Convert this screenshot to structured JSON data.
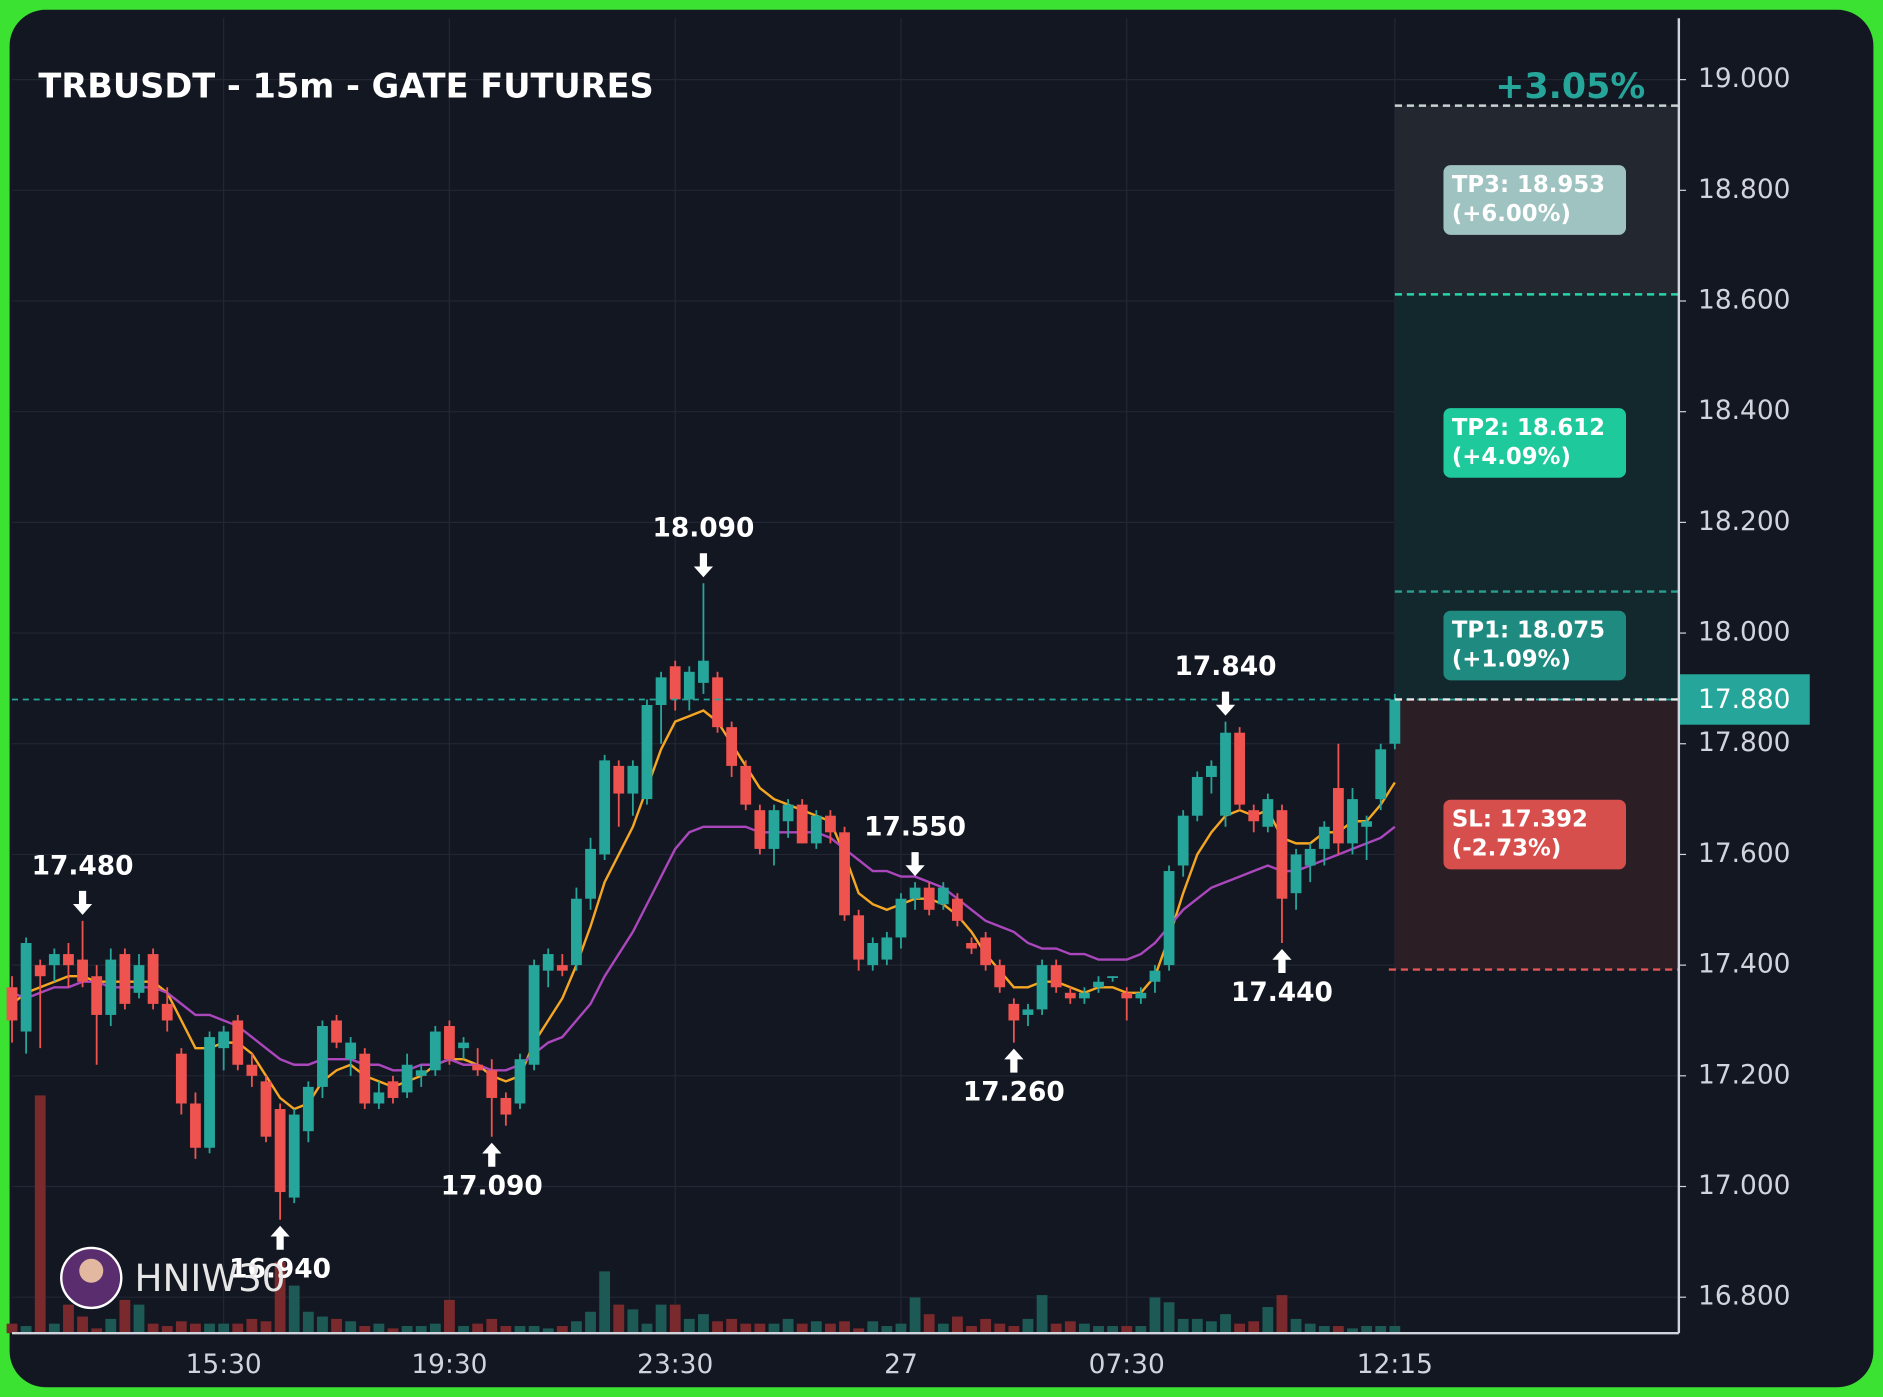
{
  "chart_data": {
    "type": "candlestick",
    "title": "TRBUSDT - 15m - GATE FUTURES",
    "categories": [
      null,
      null,
      null,
      null,
      null,
      null,
      null,
      null,
      null,
      null,
      null,
      null,
      null,
      null,
      null,
      "15:30",
      null,
      null,
      null,
      null,
      null,
      null,
      null,
      null,
      null,
      null,
      null,
      null,
      null,
      null,
      null,
      "19:30",
      null,
      null,
      null,
      null,
      null,
      null,
      null,
      null,
      null,
      null,
      null,
      null,
      null,
      null,
      null,
      "23:30",
      null,
      null,
      null,
      null,
      null,
      null,
      null,
      null,
      null,
      null,
      null,
      null,
      null,
      null,
      null,
      "27",
      null,
      null,
      null,
      null,
      null,
      null,
      null,
      null,
      null,
      null,
      null,
      null,
      null,
      null,
      null,
      "07:30",
      null,
      null,
      null,
      null,
      null,
      null,
      null,
      null,
      null,
      null,
      null,
      null,
      null,
      null,
      null,
      null,
      null,
      null,
      "12:15"
    ],
    "candles": [
      [
        17.36,
        17.38,
        17.26,
        17.3
      ],
      [
        17.28,
        17.45,
        17.24,
        17.44
      ],
      [
        17.4,
        17.41,
        17.25,
        17.38
      ],
      [
        17.4,
        17.43,
        17.37,
        17.42
      ],
      [
        17.42,
        17.44,
        17.36,
        17.4
      ],
      [
        17.41,
        17.48,
        17.36,
        17.37
      ],
      [
        17.38,
        17.4,
        17.22,
        17.31
      ],
      [
        17.31,
        17.43,
        17.29,
        17.41
      ],
      [
        17.42,
        17.43,
        17.32,
        17.33
      ],
      [
        17.35,
        17.42,
        17.34,
        17.4
      ],
      [
        17.42,
        17.43,
        17.32,
        17.33
      ],
      [
        17.33,
        17.36,
        17.28,
        17.3
      ],
      [
        17.24,
        17.25,
        17.13,
        17.15
      ],
      [
        17.15,
        17.17,
        17.05,
        17.07
      ],
      [
        17.07,
        17.28,
        17.06,
        17.27
      ],
      [
        17.25,
        17.29,
        17.21,
        17.28
      ],
      [
        17.3,
        17.31,
        17.21,
        17.22
      ],
      [
        17.22,
        17.24,
        17.18,
        17.2
      ],
      [
        17.19,
        17.2,
        17.08,
        17.09
      ],
      [
        17.14,
        17.15,
        16.94,
        16.99
      ],
      [
        16.98,
        17.14,
        16.97,
        17.13
      ],
      [
        17.1,
        17.19,
        17.08,
        17.18
      ],
      [
        17.18,
        17.3,
        17.16,
        17.29
      ],
      [
        17.3,
        17.31,
        17.25,
        17.26
      ],
      [
        17.23,
        17.27,
        17.2,
        17.26
      ],
      [
        17.24,
        17.25,
        17.14,
        17.15
      ],
      [
        17.15,
        17.19,
        17.14,
        17.17
      ],
      [
        17.19,
        17.2,
        17.15,
        17.16
      ],
      [
        17.17,
        17.24,
        17.16,
        17.22
      ],
      [
        17.2,
        17.22,
        17.18,
        17.21
      ],
      [
        17.21,
        17.29,
        17.2,
        17.28
      ],
      [
        17.29,
        17.3,
        17.22,
        17.23
      ],
      [
        17.25,
        17.27,
        17.23,
        17.26
      ],
      [
        17.22,
        17.25,
        17.2,
        17.21
      ],
      [
        17.21,
        17.23,
        17.09,
        17.16
      ],
      [
        17.16,
        17.17,
        17.11,
        17.13
      ],
      [
        17.15,
        17.24,
        17.14,
        17.23
      ],
      [
        17.22,
        17.41,
        17.21,
        17.4
      ],
      [
        17.39,
        17.43,
        17.36,
        17.42
      ],
      [
        17.4,
        17.42,
        17.38,
        17.39
      ],
      [
        17.4,
        17.54,
        17.39,
        17.52
      ],
      [
        17.52,
        17.63,
        17.5,
        17.61
      ],
      [
        17.6,
        17.78,
        17.59,
        17.77
      ],
      [
        17.76,
        17.77,
        17.65,
        17.71
      ],
      [
        17.71,
        17.77,
        17.67,
        17.76
      ],
      [
        17.7,
        17.88,
        17.69,
        17.87
      ],
      [
        17.87,
        17.93,
        17.8,
        17.92
      ],
      [
        17.94,
        17.95,
        17.86,
        17.88
      ],
      [
        17.88,
        17.94,
        17.86,
        17.93
      ],
      [
        17.91,
        18.09,
        17.89,
        17.95
      ],
      [
        17.92,
        17.93,
        17.82,
        17.83
      ],
      [
        17.83,
        17.84,
        17.74,
        17.76
      ],
      [
        17.76,
        17.77,
        17.68,
        17.69
      ],
      [
        17.68,
        17.69,
        17.6,
        17.61
      ],
      [
        17.61,
        17.69,
        17.58,
        17.68
      ],
      [
        17.66,
        17.7,
        17.63,
        17.69
      ],
      [
        17.69,
        17.7,
        17.62,
        17.62
      ],
      [
        17.62,
        17.68,
        17.61,
        17.67
      ],
      [
        17.67,
        17.68,
        17.62,
        17.64
      ],
      [
        17.64,
        17.65,
        17.48,
        17.49
      ],
      [
        17.49,
        17.5,
        17.39,
        17.41
      ],
      [
        17.4,
        17.45,
        17.39,
        17.44
      ],
      [
        17.41,
        17.46,
        17.4,
        17.45
      ],
      [
        17.45,
        17.53,
        17.43,
        17.52
      ],
      [
        17.52,
        17.55,
        17.5,
        17.54
      ],
      [
        17.54,
        17.55,
        17.49,
        17.5
      ],
      [
        17.51,
        17.55,
        17.5,
        17.54
      ],
      [
        17.52,
        17.53,
        17.47,
        17.48
      ],
      [
        17.44,
        17.45,
        17.42,
        17.43
      ],
      [
        17.45,
        17.46,
        17.39,
        17.4
      ],
      [
        17.4,
        17.41,
        17.35,
        17.36
      ],
      [
        17.33,
        17.34,
        17.26,
        17.3
      ],
      [
        17.31,
        17.33,
        17.29,
        17.32
      ],
      [
        17.32,
        17.41,
        17.31,
        17.4
      ],
      [
        17.4,
        17.41,
        17.35,
        17.36
      ],
      [
        17.35,
        17.36,
        17.33,
        17.34
      ],
      [
        17.34,
        17.36,
        17.33,
        17.35
      ],
      [
        17.36,
        17.38,
        17.35,
        17.37
      ],
      [
        17.38,
        17.38,
        17.37,
        17.38
      ],
      [
        17.35,
        17.36,
        17.3,
        17.34
      ],
      [
        17.34,
        17.36,
        17.33,
        17.35
      ],
      [
        17.37,
        17.4,
        17.35,
        17.39
      ],
      [
        17.4,
        17.58,
        17.39,
        17.57
      ],
      [
        17.58,
        17.68,
        17.56,
        17.67
      ],
      [
        17.67,
        17.75,
        17.66,
        17.74
      ],
      [
        17.74,
        17.77,
        17.71,
        17.76
      ],
      [
        17.67,
        17.84,
        17.65,
        17.82
      ],
      [
        17.82,
        17.83,
        17.68,
        17.69
      ],
      [
        17.68,
        17.69,
        17.64,
        17.66
      ],
      [
        17.65,
        17.71,
        17.64,
        17.7
      ],
      [
        17.68,
        17.69,
        17.44,
        17.52
      ],
      [
        17.53,
        17.61,
        17.5,
        17.6
      ],
      [
        17.58,
        17.62,
        17.55,
        17.61
      ],
      [
        17.61,
        17.66,
        17.58,
        17.65
      ],
      [
        17.72,
        17.8,
        17.6,
        17.62
      ],
      [
        17.62,
        17.72,
        17.6,
        17.7
      ],
      [
        17.65,
        17.67,
        17.59,
        17.66
      ],
      [
        17.7,
        17.8,
        17.68,
        17.79
      ],
      [
        17.8,
        17.89,
        17.79,
        17.88
      ]
    ],
    "volume": [
      4,
      3,
      100,
      4,
      12,
      7,
      2,
      6,
      14,
      12,
      4,
      3,
      5,
      4,
      4,
      4,
      4,
      6,
      5,
      30,
      20,
      9,
      7,
      6,
      5,
      3,
      4,
      2,
      3,
      3,
      4,
      14,
      3,
      4,
      6,
      3,
      3,
      3,
      2,
      3,
      5,
      9,
      26,
      12,
      10,
      4,
      12,
      12,
      6,
      8,
      5,
      6,
      4,
      4,
      4,
      6,
      4,
      5,
      4,
      5,
      2,
      5,
      3,
      4,
      15,
      8,
      4,
      7,
      3,
      6,
      4,
      3,
      6,
      16,
      4,
      5,
      4,
      3,
      3,
      3,
      3,
      15,
      13,
      6,
      6,
      5,
      8,
      4,
      5,
      11,
      16,
      6,
      4,
      3,
      3,
      2,
      3,
      3,
      3
    ],
    "ma_fast": {
      "color": "#f5a623",
      "values": [
        17.33,
        17.35,
        17.36,
        17.37,
        17.38,
        17.38,
        17.37,
        17.37,
        17.37,
        17.37,
        17.37,
        17.35,
        17.3,
        17.25,
        17.25,
        17.26,
        17.26,
        17.24,
        17.2,
        17.16,
        17.14,
        17.15,
        17.19,
        17.21,
        17.22,
        17.2,
        17.19,
        17.18,
        17.19,
        17.2,
        17.22,
        17.23,
        17.23,
        17.22,
        17.2,
        17.19,
        17.2,
        17.26,
        17.3,
        17.34,
        17.4,
        17.47,
        17.55,
        17.6,
        17.65,
        17.72,
        17.79,
        17.84,
        17.85,
        17.86,
        17.84,
        17.8,
        17.76,
        17.72,
        17.7,
        17.69,
        17.68,
        17.67,
        17.66,
        17.6,
        17.53,
        17.51,
        17.5,
        17.51,
        17.52,
        17.52,
        17.51,
        17.49,
        17.46,
        17.42,
        17.39,
        17.36,
        17.36,
        17.37,
        17.37,
        17.36,
        17.35,
        17.36,
        17.36,
        17.35,
        17.35,
        17.38,
        17.45,
        17.53,
        17.6,
        17.64,
        17.67,
        17.68,
        17.67,
        17.68,
        17.63,
        17.62,
        17.62,
        17.64,
        17.64,
        17.66,
        17.66,
        17.69,
        17.73
      ]
    },
    "ma_slow": {
      "color": "#ab47bc",
      "values": [
        17.35,
        17.34,
        17.35,
        17.36,
        17.36,
        17.37,
        17.37,
        17.36,
        17.36,
        17.36,
        17.36,
        17.35,
        17.33,
        17.31,
        17.31,
        17.3,
        17.29,
        17.27,
        17.25,
        17.23,
        17.22,
        17.22,
        17.23,
        17.23,
        17.23,
        17.22,
        17.22,
        17.21,
        17.21,
        17.22,
        17.22,
        17.23,
        17.22,
        17.22,
        17.21,
        17.21,
        17.22,
        17.24,
        17.26,
        17.27,
        17.3,
        17.33,
        17.38,
        17.42,
        17.46,
        17.51,
        17.56,
        17.61,
        17.64,
        17.65,
        17.65,
        17.65,
        17.65,
        17.64,
        17.64,
        17.64,
        17.64,
        17.64,
        17.63,
        17.61,
        17.59,
        17.57,
        17.57,
        17.56,
        17.56,
        17.55,
        17.54,
        17.52,
        17.5,
        17.48,
        17.47,
        17.46,
        17.44,
        17.43,
        17.43,
        17.42,
        17.42,
        17.41,
        17.41,
        17.41,
        17.42,
        17.44,
        17.47,
        17.5,
        17.52,
        17.54,
        17.55,
        17.56,
        17.57,
        17.58,
        17.57,
        17.57,
        17.58,
        17.59,
        17.6,
        17.61,
        17.62,
        17.63,
        17.65
      ]
    },
    "up_color": "#26a69a",
    "down_color": "#ef5350",
    "ylim": [
      16.735,
      19.111
    ],
    "yticks": [
      {
        "value": 16.8,
        "label": "16.800"
      },
      {
        "value": 17.0,
        "label": "17.000"
      },
      {
        "value": 17.2,
        "label": "17.200"
      },
      {
        "value": 17.4,
        "label": "17.400"
      },
      {
        "value": 17.6,
        "label": "17.600"
      },
      {
        "value": 17.8,
        "label": "17.800"
      },
      {
        "value": 18.0,
        "label": "18.000"
      },
      {
        "value": 18.2,
        "label": "18.200"
      },
      {
        "value": 18.4,
        "label": "18.400"
      },
      {
        "value": 18.6,
        "label": "18.600"
      },
      {
        "value": 18.8,
        "label": "18.800"
      },
      {
        "value": 19.0,
        "label": "19.000"
      }
    ],
    "grid": true,
    "annotations": [
      {
        "label": "17.480",
        "value": 17.48,
        "x": 5
      },
      {
        "label": "16.940",
        "value": 16.94,
        "x": 19
      },
      {
        "label": "17.090",
        "value": 17.09,
        "x": 34
      },
      {
        "label": "18.090",
        "value": 18.09,
        "x": 49
      },
      {
        "label": "17.550",
        "value": 17.55,
        "x": 64
      },
      {
        "label": "17.260",
        "value": 17.26,
        "x": 71
      },
      {
        "label": "17.840",
        "value": 17.84,
        "x": 86
      },
      {
        "label": "17.440",
        "value": 17.44,
        "x": 90
      }
    ],
    "levels": [
      {
        "label": "TP3: 18.953",
        "note": "(+6.00%)",
        "value": 18.953,
        "color": "#9fc3c0",
        "line": "#c9d3d3",
        "zone": "#232830"
      },
      {
        "label": "TP2: 18.612",
        "note": "(+4.09%)",
        "value": 18.612,
        "color": "#1ec99c",
        "line": "#2ad3a9",
        "zone": "#13282c"
      },
      {
        "label": "TP1: 18.075",
        "note": "(+1.09%)",
        "value": 18.075,
        "color": "#1f8b80",
        "line": "#2a9d8f",
        "zone": "#13282c"
      },
      {
        "label": "SL: 17.392",
        "note": "(-2.73%)",
        "value": 17.392,
        "color": "#d64f4c",
        "line": "#e05555",
        "zone": "#2b1f25"
      }
    ],
    "entry": {
      "value": 17.88,
      "label": "17.880",
      "color": "#26a69a"
    },
    "change": "+3.05%",
    "watermark": "HNIW30"
  }
}
